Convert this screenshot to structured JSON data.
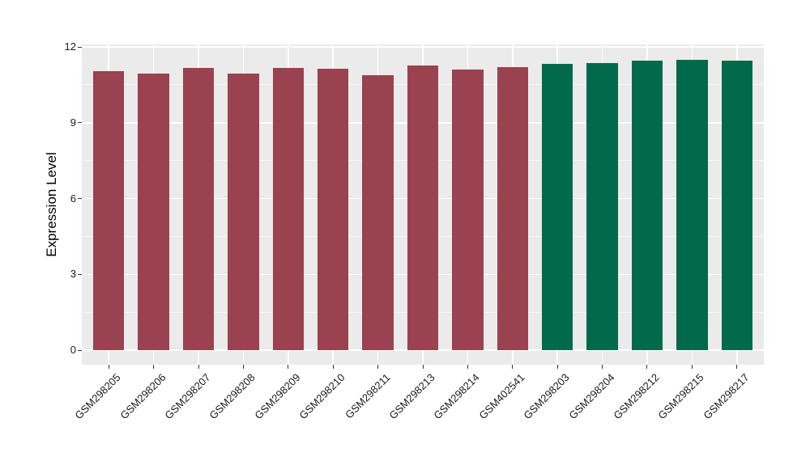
{
  "figure": {
    "background_color": "#FFFFFF",
    "panel_background_color": "#EBEBEB",
    "gridline_color": "#FFFFFF",
    "tick_mark_color": "#333333",
    "axis_text_color": "#1A1A1A",
    "axis_title_color": "#000000"
  },
  "chart_data": {
    "type": "bar",
    "title": "",
    "xlabel": "",
    "ylabel": "Expression Level",
    "ylim": [
      0,
      12
    ],
    "yticks": [
      0,
      3,
      6,
      9,
      12
    ],
    "grid": "horizontal major+minor white lines; vertical white line at each category center",
    "legend_position": "none",
    "categories": [
      "GSM298205",
      "GSM298206",
      "GSM298207",
      "GSM298208",
      "GSM298209",
      "GSM298210",
      "GSM298211",
      "GSM298213",
      "GSM298214",
      "GSM402541",
      "GSM298203",
      "GSM298204",
      "GSM298212",
      "GSM298215",
      "GSM298217"
    ],
    "values": [
      11.03,
      10.93,
      11.16,
      10.95,
      11.16,
      11.15,
      10.87,
      11.25,
      11.11,
      11.21,
      11.32,
      11.37,
      11.46,
      11.5,
      11.45
    ],
    "group_of_bar": [
      "group1",
      "group1",
      "group1",
      "group1",
      "group1",
      "group1",
      "group1",
      "group1",
      "group1",
      "group1",
      "group2",
      "group2",
      "group2",
      "group2",
      "group2"
    ],
    "group_colors": {
      "group1": "#9A424F",
      "group2": "#016A4B"
    }
  }
}
